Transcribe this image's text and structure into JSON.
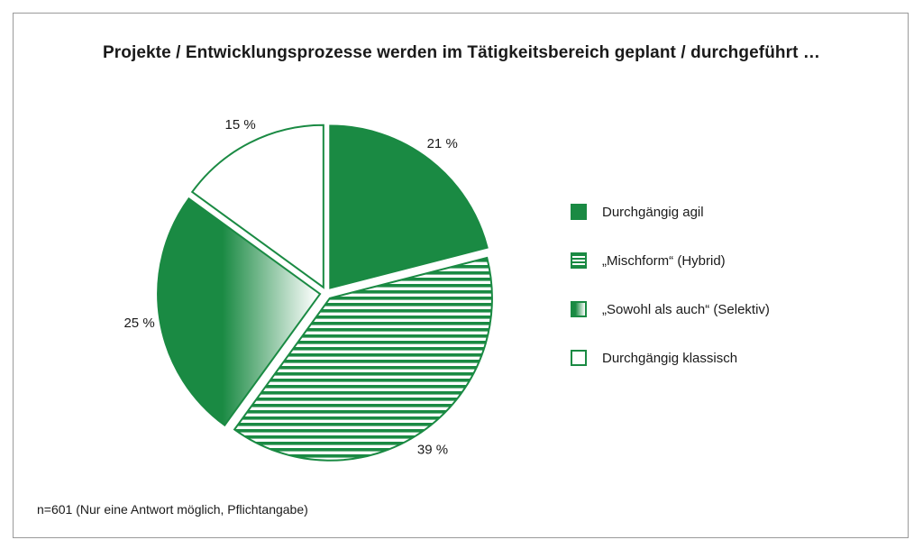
{
  "chart_data": {
    "type": "pie",
    "title": "Projekte / Entwicklungsprozesse werden im Tätigkeitsbereich geplant / durchgeführt …",
    "categories": [
      "Durchgängig agil",
      "„Mischform“ (Hybrid)",
      "„Sowohl als auch“ (Selektiv)",
      "Durchgängig klassisch"
    ],
    "values": [
      21,
      39,
      25,
      15
    ],
    "labels": [
      "21 %",
      "39 %",
      "25 %",
      "15 %"
    ],
    "legend_position": "right",
    "colors": {
      "accent": "#1a8a43",
      "background": "#ffffff",
      "text": "#1a1a1a"
    },
    "patterns": [
      "solid",
      "horizontal-stripes",
      "gradient",
      "empty"
    ],
    "footnote": "n=601 (Nur eine Antwort möglich, Pflichtangabe)"
  }
}
